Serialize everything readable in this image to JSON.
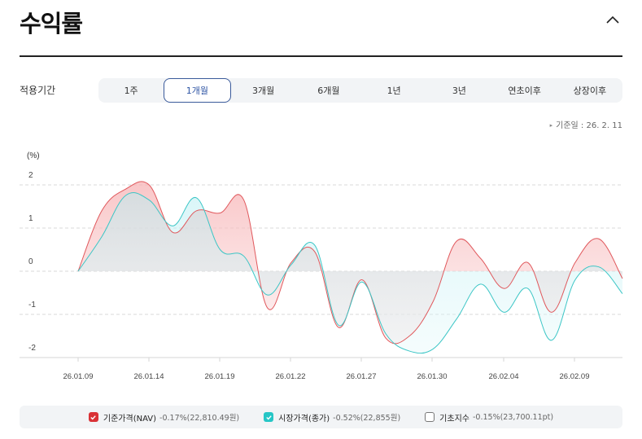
{
  "header": {
    "title": "수익률",
    "collapse_icon": "chevron-up-icon"
  },
  "period": {
    "label": "적용기간",
    "tabs": [
      "1주",
      "1개월",
      "3개월",
      "6개월",
      "1년",
      "3년",
      "연초이후",
      "상장이후"
    ],
    "active_index": 1
  },
  "base_date": "기준일 : 26. 2. 11",
  "legend": [
    {
      "name": "기준가격(NAV)",
      "value": "-0.17%(22,810.49원)",
      "checked": true,
      "color": "#d93236"
    },
    {
      "name": "시장가격(종가)",
      "value": "-0.52%(22,855원)",
      "checked": true,
      "color": "#26c6c6"
    },
    {
      "name": "기초지수",
      "value": "-0.15%(23,700.11pt)",
      "checked": false,
      "color": "#777777"
    }
  ],
  "colors": {
    "nav_line": "#e0585c",
    "nav_fill": "#f9c9ca",
    "market_line": "#3cc6c6",
    "market_fill": "#d4f4f6",
    "grid": "#cccccc"
  },
  "chart_data": {
    "type": "area",
    "title": "수익률",
    "ylabel": "(%)",
    "xlabel": "",
    "ylim": [
      -2,
      2
    ],
    "yticks": [
      2,
      1,
      0,
      -1,
      -2
    ],
    "xticks": [
      "26.01.09",
      "26.01.14",
      "26.01.19",
      "26.01.22",
      "26.01.27",
      "26.01.30",
      "26.02.04",
      "26.02.09"
    ],
    "grid": true,
    "legend_position": "bottom",
    "x": [
      "26.01.09",
      "26.01.12",
      "26.01.13",
      "26.01.14",
      "26.01.15",
      "26.01.16",
      "26.01.19",
      "26.01.20",
      "26.01.21",
      "26.01.22",
      "26.01.23",
      "26.01.26",
      "26.01.27",
      "26.01.28",
      "26.01.29",
      "26.01.30",
      "26.02.02",
      "26.02.03",
      "26.02.04",
      "26.02.05",
      "26.02.06",
      "26.02.09",
      "26.02.10",
      "26.02.11"
    ],
    "series": [
      {
        "name": "기준가격(NAV)",
        "values": [
          0.0,
          1.4,
          1.9,
          2.0,
          0.9,
          1.4,
          1.35,
          1.65,
          -0.85,
          0.2,
          0.45,
          -1.3,
          -0.2,
          -1.55,
          -1.5,
          -0.7,
          0.7,
          0.3,
          -0.4,
          0.2,
          -0.95,
          0.2,
          0.75,
          -0.17
        ]
      },
      {
        "name": "시장가격(종가)",
        "values": [
          0.0,
          0.8,
          1.75,
          1.65,
          1.05,
          1.7,
          0.5,
          0.35,
          -0.55,
          0.15,
          0.6,
          -1.25,
          -0.25,
          -1.45,
          -1.85,
          -1.8,
          -1.1,
          -0.3,
          -0.95,
          -0.4,
          -1.6,
          -0.2,
          0.1,
          -0.52
        ]
      }
    ]
  }
}
